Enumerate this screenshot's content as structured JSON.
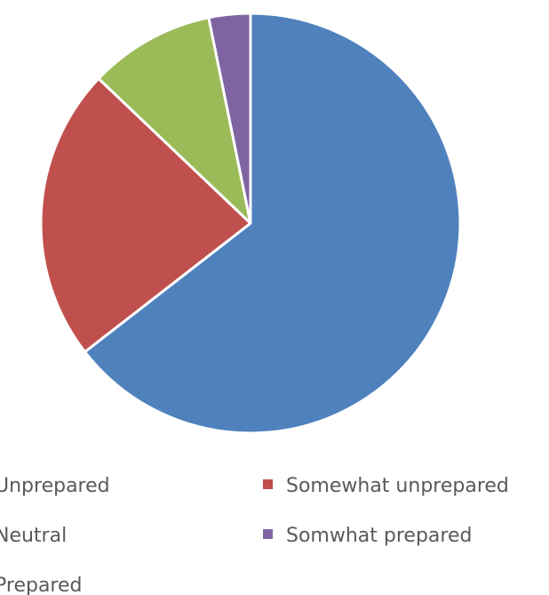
{
  "chart_data": {
    "type": "pie",
    "title": "",
    "slices": [
      {
        "label": "Unprepared",
        "display_label": "Unprepared",
        "value": 64.5,
        "color": "#4F81BD"
      },
      {
        "label": "Somewhat unprepared",
        "display_label": "Somewhat unprepared",
        "value": 22.6,
        "color": "#C0504D"
      },
      {
        "label": "Neutral",
        "display_label": "Neutral",
        "value": 9.7,
        "color": "#9BBB59"
      },
      {
        "label": "Somwhat prepared",
        "display_label": "Somwhat prepared",
        "value": 3.2,
        "color": "#8064A2"
      },
      {
        "label": "Prepared",
        "display_label": "Prepared",
        "value": 0,
        "color": "#4BACC6"
      }
    ],
    "legend": {
      "position": "bottom"
    }
  }
}
